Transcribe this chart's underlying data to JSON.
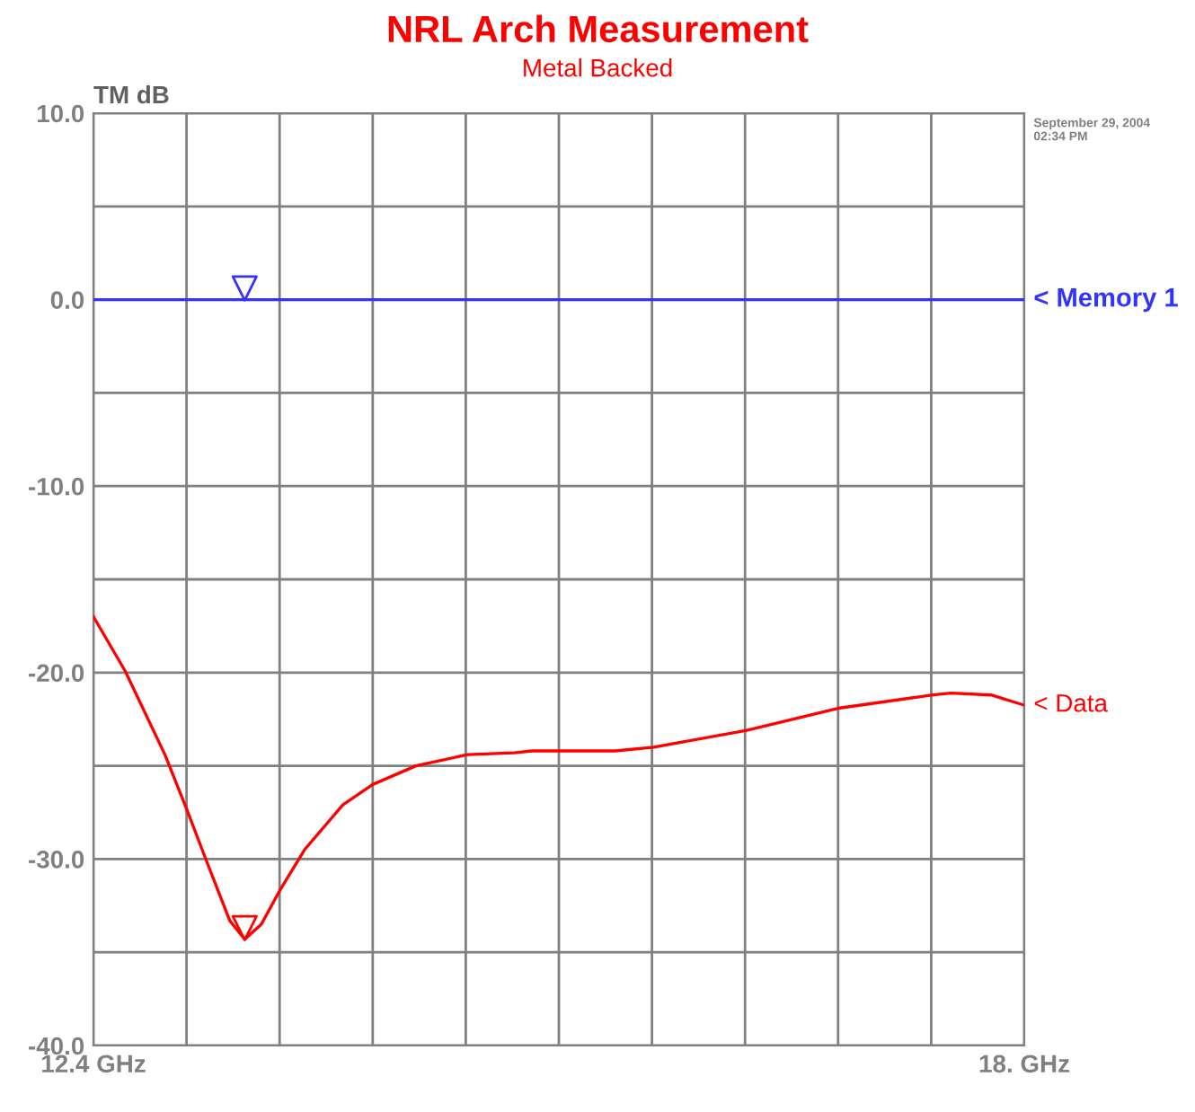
{
  "chart_data": {
    "type": "line",
    "title": "NRL Arch Measurement",
    "subtitle": "Metal Backed",
    "ylabel": "TM dB",
    "annotations": [
      "September 29, 2004\n02:34 PM"
    ],
    "xlim": [
      12.4,
      18.0
    ],
    "ylim": [
      -40,
      10
    ],
    "xticks": [
      {
        "value": 12.4,
        "label": "12.4 GHz"
      },
      {
        "value": 12.96,
        "label": null
      },
      {
        "value": 13.52,
        "label": null
      },
      {
        "value": 14.08,
        "label": null
      },
      {
        "value": 14.64,
        "label": null
      },
      {
        "value": 15.2,
        "label": null
      },
      {
        "value": 15.76,
        "label": null
      },
      {
        "value": 16.32,
        "label": null
      },
      {
        "value": 16.88,
        "label": null
      },
      {
        "value": 17.44,
        "label": null
      },
      {
        "value": 18.0,
        "label": "18. GHz"
      }
    ],
    "yticks": [
      {
        "value": -40,
        "label": "-40.0"
      },
      {
        "value": -35,
        "label": null
      },
      {
        "value": -30,
        "label": "-30.0"
      },
      {
        "value": -25,
        "label": null
      },
      {
        "value": -20,
        "label": "-20.0"
      },
      {
        "value": -15,
        "label": null
      },
      {
        "value": -10,
        "label": "-10.0"
      },
      {
        "value": -5,
        "label": null
      },
      {
        "value": 0,
        "label": "0.0"
      },
      {
        "value": 5,
        "label": null
      },
      {
        "value": 10,
        "label": "10.0"
      }
    ],
    "grid": true,
    "legend": false,
    "series": [
      {
        "name": "< Memory 1",
        "color": "#3333ff",
        "x": [
          12.4,
          18.0
        ],
        "values": [
          0.0,
          0.0
        ]
      },
      {
        "name": "< Data",
        "color": "#ff0000",
        "x": [
          12.4,
          12.59,
          12.83,
          12.96,
          13.08,
          13.22,
          13.31,
          13.41,
          13.52,
          13.67,
          13.9,
          14.08,
          14.34,
          14.65,
          14.93,
          15.04,
          15.35,
          15.54,
          15.77,
          16.33,
          16.89,
          17.45,
          17.56,
          17.8,
          18.0
        ],
        "values": [
          -17.0,
          -19.9,
          -24.4,
          -27.3,
          -30.1,
          -33.3,
          -34.3,
          -33.5,
          -31.7,
          -29.5,
          -27.1,
          -26.0,
          -25.0,
          -24.4,
          -24.3,
          -24.2,
          -24.2,
          -24.2,
          -24.0,
          -23.1,
          -21.9,
          -21.2,
          -21.1,
          -21.2,
          -21.75
        ]
      },
      {
        "type": "scatter",
        "marker": "triangle",
        "colors": [
          "#3333ff",
          "#ff0000"
        ],
        "x": [
          13.31,
          13.31
        ],
        "values": [
          0.6,
          -33.7
        ]
      }
    ]
  }
}
